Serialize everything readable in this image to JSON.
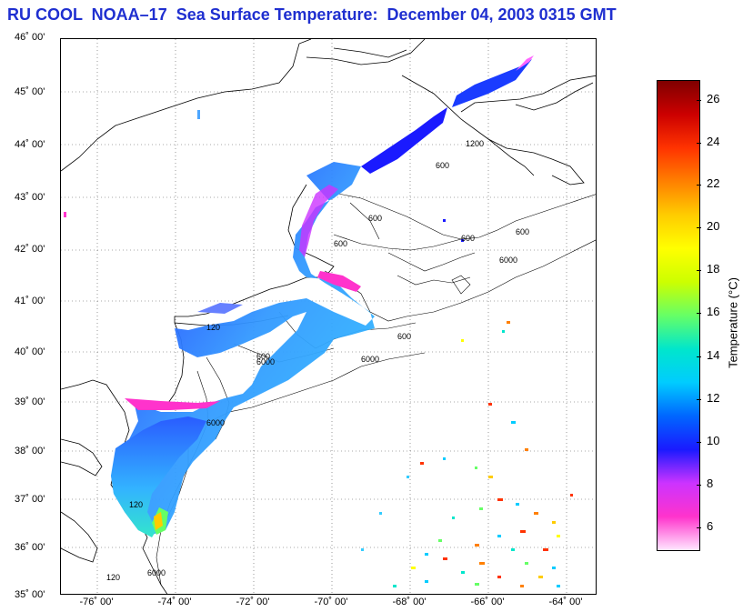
{
  "title": "RU COOL  NOAA–17  Sea Surface Temperature:  December 04, 2003 0315 GMT",
  "map": {
    "lat_labels": [
      "46˚ 00'",
      "45˚ 00'",
      "44˚ 00'",
      "43˚ 00'",
      "42˚ 00'",
      "41˚ 00'",
      "40˚ 00'",
      "39˚ 00'",
      "38˚ 00'",
      "37˚ 00'",
      "36˚ 00'",
      "35˚ 00'"
    ],
    "lon_labels": [
      "-76˚ 00'",
      "-74˚ 00'",
      "-72˚ 00'",
      "-70˚ 00'",
      "-68˚ 00'",
      "-66˚ 00'",
      "-64˚ 00'"
    ],
    "contour_labels": [
      "600",
      "600",
      "600",
      "600",
      "600",
      "6000",
      "6000",
      "6000",
      "600",
      "6000",
      "120",
      "120",
      "120",
      "600",
      "6000",
      "1200"
    ]
  },
  "colorbar": {
    "label": "Temperature (°C)",
    "ticks": [
      "26",
      "24",
      "22",
      "20",
      "18",
      "16",
      "14",
      "12",
      "10",
      "8",
      "6"
    ],
    "colors": [
      "#ffe6ff",
      "#ff33cc",
      "#cc33ff",
      "#1a1aff",
      "#0066ff",
      "#00ccff",
      "#00e6cc",
      "#66ff66",
      "#ccff00",
      "#ffff00",
      "#ffcc00",
      "#ff8000",
      "#ff3300",
      "#cc0000",
      "#800000"
    ]
  }
}
